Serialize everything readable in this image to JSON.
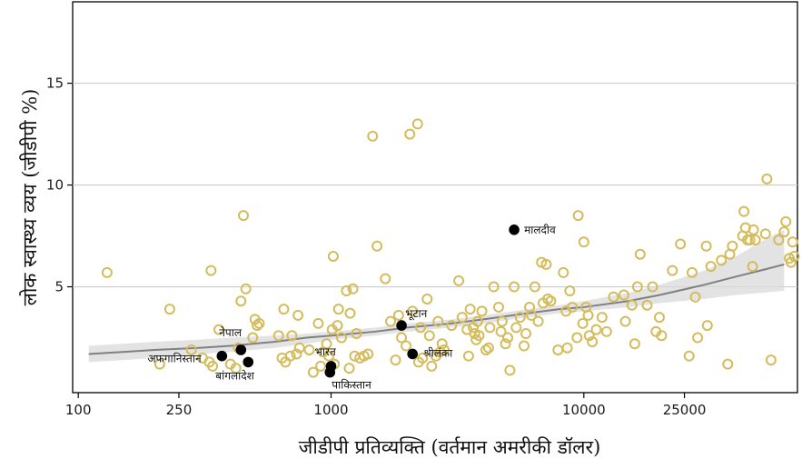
{
  "chart_data": {
    "type": "scatter",
    "xlabel": "जीडीपी प्रतिव्यक्ति (वर्तमान अमरीकी डॉलर)",
    "ylabel": "लोक स्वास्थ्य व्यय (जीडीपी %)",
    "x_scale": "log",
    "xlim": [
      95,
      70000
    ],
    "ylim": [
      -0.2,
      19
    ],
    "x_ticks": [
      100,
      250,
      1000,
      10000,
      25000
    ],
    "x_tick_labels": [
      "100",
      "250",
      "1000",
      "10000",
      "25000"
    ],
    "y_ticks": [
      5,
      10,
      15
    ],
    "y_tick_labels": [
      "5",
      "10",
      "15"
    ],
    "grid": "horizontal",
    "colors": {
      "other_countries": "#d4bc5c",
      "south_asia": "#000000",
      "trend_line": "#808080",
      "confidence_band": "#d9d9d9"
    },
    "highlighted": [
      {
        "label": "मालदीव",
        "x": 5300,
        "y": 7.8
      },
      {
        "label": "भूटान",
        "x": 1900,
        "y": 3.1
      },
      {
        "label": "नेपाल",
        "x": 440,
        "y": 1.9
      },
      {
        "label": "अफगानिस्तान",
        "x": 370,
        "y": 1.6
      },
      {
        "label": "बांगलादेश",
        "x": 470,
        "y": 1.3
      },
      {
        "label": "भारत",
        "x": 1000,
        "y": 1.1
      },
      {
        "label": "पाकिस्तान",
        "x": 990,
        "y": 0.8
      },
      {
        "label": "श्रीलंका",
        "x": 2100,
        "y": 1.7
      }
    ],
    "others": [
      [
        130,
        5.7
      ],
      [
        210,
        1.2
      ],
      [
        230,
        3.9
      ],
      [
        280,
        1.9
      ],
      [
        310,
        1.5
      ],
      [
        330,
        1.3
      ],
      [
        335,
        5.8
      ],
      [
        340,
        1.1
      ],
      [
        360,
        2.9
      ],
      [
        400,
        1.2
      ],
      [
        420,
        1.0
      ],
      [
        430,
        2.0
      ],
      [
        440,
        4.3
      ],
      [
        450,
        8.5
      ],
      [
        460,
        4.9
      ],
      [
        490,
        2.5
      ],
      [
        500,
        3.4
      ],
      [
        510,
        3.1
      ],
      [
        520,
        3.2
      ],
      [
        620,
        2.6
      ],
      [
        640,
        1.5
      ],
      [
        650,
        3.9
      ],
      [
        660,
        1.3
      ],
      [
        690,
        1.6
      ],
      [
        700,
        2.6
      ],
      [
        730,
        1.7
      ],
      [
        740,
        3.6
      ],
      [
        750,
        2.0
      ],
      [
        820,
        1.9
      ],
      [
        850,
        0.8
      ],
      [
        890,
        3.2
      ],
      [
        910,
        1.1
      ],
      [
        930,
        1.8
      ],
      [
        960,
        2.2
      ],
      [
        980,
        1.6
      ],
      [
        1010,
        2.9
      ],
      [
        1020,
        6.5
      ],
      [
        1030,
        1.2
      ],
      [
        1060,
        3.1
      ],
      [
        1070,
        3.9
      ],
      [
        1100,
        2.5
      ],
      [
        1150,
        4.8
      ],
      [
        1180,
        1.0
      ],
      [
        1190,
        3.7
      ],
      [
        1220,
        4.9
      ],
      [
        1240,
        1.6
      ],
      [
        1260,
        2.7
      ],
      [
        1300,
        1.5
      ],
      [
        1350,
        1.6
      ],
      [
        1400,
        1.7
      ],
      [
        1460,
        12.4
      ],
      [
        1520,
        7.0
      ],
      [
        1640,
        5.4
      ],
      [
        1720,
        3.3
      ],
      [
        1800,
        1.4
      ],
      [
        1850,
        3.6
      ],
      [
        1900,
        2.5
      ],
      [
        1980,
        2.1
      ],
      [
        2050,
        12.5
      ],
      [
        2100,
        3.8
      ],
      [
        2200,
        13.0
      ],
      [
        2220,
        1.3
      ],
      [
        2260,
        3.0
      ],
      [
        2300,
        1.5
      ],
      [
        2400,
        4.4
      ],
      [
        2450,
        2.6
      ],
      [
        2500,
        1.1
      ],
      [
        2600,
        1.6
      ],
      [
        2650,
        3.3
      ],
      [
        2700,
        1.8
      ],
      [
        2750,
        2.2
      ],
      [
        2800,
        1.9
      ],
      [
        3000,
        3.1
      ],
      [
        3200,
        5.3
      ],
      [
        3300,
        3.5
      ],
      [
        3450,
        2.9
      ],
      [
        3500,
        1.6
      ],
      [
        3550,
        3.9
      ],
      [
        3650,
        3.0
      ],
      [
        3700,
        2.7
      ],
      [
        3750,
        2.4
      ],
      [
        3800,
        3.3
      ],
      [
        3850,
        2.6
      ],
      [
        3950,
        3.8
      ],
      [
        4100,
        1.9
      ],
      [
        4200,
        2.0
      ],
      [
        4250,
        3.0
      ],
      [
        4400,
        5.0
      ],
      [
        4600,
        4.0
      ],
      [
        4700,
        2.8
      ],
      [
        4750,
        3.3
      ],
      [
        4900,
        2.2
      ],
      [
        5000,
        2.5
      ],
      [
        5100,
        0.9
      ],
      [
        5300,
        5.0
      ],
      [
        5400,
        3.0
      ],
      [
        5600,
        3.5
      ],
      [
        5800,
        2.1
      ],
      [
        5900,
        2.7
      ],
      [
        6100,
        4.0
      ],
      [
        6200,
        3.6
      ],
      [
        6400,
        5.0
      ],
      [
        6600,
        3.3
      ],
      [
        6800,
        6.2
      ],
      [
        6900,
        4.2
      ],
      [
        7100,
        6.1
      ],
      [
        7200,
        4.4
      ],
      [
        7400,
        4.3
      ],
      [
        7900,
        1.9
      ],
      [
        8300,
        5.7
      ],
      [
        8500,
        3.8
      ],
      [
        8600,
        2.0
      ],
      [
        8800,
        4.8
      ],
      [
        9000,
        4.0
      ],
      [
        9400,
        2.5
      ],
      [
        9500,
        8.5
      ],
      [
        9900,
        3.2
      ],
      [
        10000,
        7.2
      ],
      [
        10200,
        4.0
      ],
      [
        10400,
        3.6
      ],
      [
        10500,
        2.6
      ],
      [
        10800,
        2.3
      ],
      [
        11200,
        2.9
      ],
      [
        11800,
        3.5
      ],
      [
        12300,
        2.8
      ],
      [
        13100,
        4.5
      ],
      [
        14400,
        4.6
      ],
      [
        14600,
        3.3
      ],
      [
        15500,
        4.1
      ],
      [
        15900,
        2.2
      ],
      [
        16300,
        5.0
      ],
      [
        16700,
        6.6
      ],
      [
        17800,
        4.1
      ],
      [
        18700,
        5.0
      ],
      [
        19300,
        2.8
      ],
      [
        19900,
        3.5
      ],
      [
        20300,
        2.6
      ],
      [
        22400,
        5.8
      ],
      [
        24100,
        7.1
      ],
      [
        26100,
        1.6
      ],
      [
        26800,
        5.7
      ],
      [
        27600,
        4.5
      ],
      [
        28200,
        2.5
      ],
      [
        30500,
        7.0
      ],
      [
        30800,
        3.1
      ],
      [
        31800,
        6.0
      ],
      [
        35000,
        6.3
      ],
      [
        37100,
        1.2
      ],
      [
        37800,
        6.6
      ],
      [
        38700,
        7.0
      ],
      [
        42500,
        7.5
      ],
      [
        43000,
        8.7
      ],
      [
        43600,
        7.9
      ],
      [
        44400,
        7.3
      ],
      [
        45400,
        7.3
      ],
      [
        46500,
        6.0
      ],
      [
        46900,
        7.8
      ],
      [
        47700,
        7.3
      ],
      [
        52300,
        7.6
      ],
      [
        53000,
        10.3
      ],
      [
        55000,
        1.4
      ],
      [
        59000,
        7.3
      ],
      [
        62000,
        7.7
      ],
      [
        63000,
        8.2
      ],
      [
        65000,
        6.4
      ],
      [
        66000,
        6.2
      ],
      [
        67000,
        7.2
      ],
      [
        68000,
        6.5
      ]
    ],
    "trend_line": [
      [
        110,
        1.7
      ],
      [
        150,
        1.8
      ],
      [
        200,
        1.9
      ],
      [
        300,
        2.0
      ],
      [
        400,
        2.1
      ],
      [
        600,
        2.3
      ],
      [
        800,
        2.5
      ],
      [
        1000,
        2.6
      ],
      [
        1500,
        2.8
      ],
      [
        2000,
        3.0
      ],
      [
        3000,
        3.2
      ],
      [
        4000,
        3.4
      ],
      [
        6000,
        3.7
      ],
      [
        8000,
        3.9
      ],
      [
        10000,
        4.0
      ],
      [
        15000,
        4.3
      ],
      [
        20000,
        4.6
      ],
      [
        30000,
        5.1
      ],
      [
        40000,
        5.5
      ],
      [
        50000,
        5.8
      ],
      [
        62000,
        6.1
      ]
    ],
    "trend_band_upper": [
      [
        110,
        2.1
      ],
      [
        150,
        2.2
      ],
      [
        200,
        2.3
      ],
      [
        300,
        2.4
      ],
      [
        400,
        2.5
      ],
      [
        600,
        2.6
      ],
      [
        800,
        2.7
      ],
      [
        1000,
        2.8
      ],
      [
        1500,
        3.0
      ],
      [
        2000,
        3.2
      ],
      [
        3000,
        3.4
      ],
      [
        4000,
        3.6
      ],
      [
        6000,
        3.9
      ],
      [
        8000,
        4.1
      ],
      [
        10000,
        4.3
      ],
      [
        15000,
        4.7
      ],
      [
        20000,
        5.1
      ],
      [
        30000,
        5.8
      ],
      [
        40000,
        6.5
      ],
      [
        50000,
        7.2
      ],
      [
        62000,
        7.8
      ]
    ],
    "trend_band_lower": [
      [
        110,
        1.3
      ],
      [
        150,
        1.4
      ],
      [
        200,
        1.5
      ],
      [
        300,
        1.7
      ],
      [
        400,
        1.8
      ],
      [
        600,
        2.0
      ],
      [
        800,
        2.2
      ],
      [
        1000,
        2.4
      ],
      [
        1500,
        2.6
      ],
      [
        2000,
        2.8
      ],
      [
        3000,
        3.0
      ],
      [
        4000,
        3.2
      ],
      [
        6000,
        3.5
      ],
      [
        8000,
        3.7
      ],
      [
        10000,
        3.8
      ],
      [
        15000,
        4.0
      ],
      [
        20000,
        4.2
      ],
      [
        30000,
        4.4
      ],
      [
        40000,
        4.6
      ],
      [
        50000,
        4.7
      ],
      [
        62000,
        4.8
      ]
    ]
  }
}
